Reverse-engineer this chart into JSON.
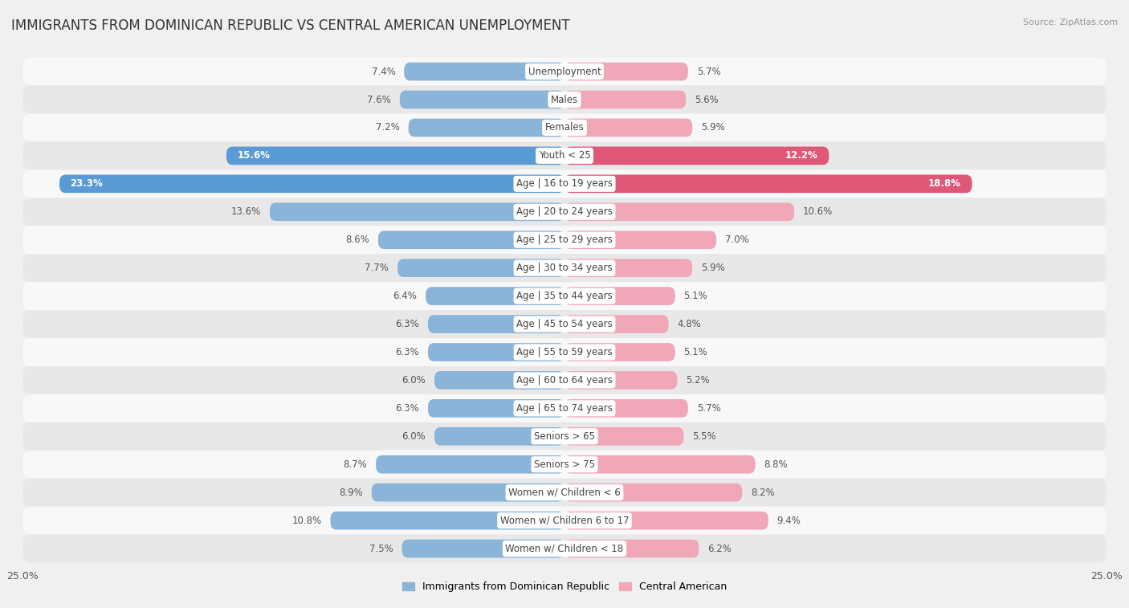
{
  "title": "IMMIGRANTS FROM DOMINICAN REPUBLIC VS CENTRAL AMERICAN UNEMPLOYMENT",
  "source": "Source: ZipAtlas.com",
  "categories": [
    "Unemployment",
    "Males",
    "Females",
    "Youth < 25",
    "Age | 16 to 19 years",
    "Age | 20 to 24 years",
    "Age | 25 to 29 years",
    "Age | 30 to 34 years",
    "Age | 35 to 44 years",
    "Age | 45 to 54 years",
    "Age | 55 to 59 years",
    "Age | 60 to 64 years",
    "Age | 65 to 74 years",
    "Seniors > 65",
    "Seniors > 75",
    "Women w/ Children < 6",
    "Women w/ Children 6 to 17",
    "Women w/ Children < 18"
  ],
  "left_values": [
    7.4,
    7.6,
    7.2,
    15.6,
    23.3,
    13.6,
    8.6,
    7.7,
    6.4,
    6.3,
    6.3,
    6.0,
    6.3,
    6.0,
    8.7,
    8.9,
    10.8,
    7.5
  ],
  "right_values": [
    5.7,
    5.6,
    5.9,
    12.2,
    18.8,
    10.6,
    7.0,
    5.9,
    5.1,
    4.8,
    5.1,
    5.2,
    5.7,
    5.5,
    8.8,
    8.2,
    9.4,
    6.2
  ],
  "left_color_normal": "#8ab4d8",
  "left_color_highlight": "#5b9bd5",
  "right_color_normal": "#f0a8b8",
  "right_color_highlight": "#e05878",
  "highlight_rows": [
    3,
    4
  ],
  "max_value": 25.0,
  "fig_bg": "#f0f0f0",
  "row_bg_even": "#f8f8f8",
  "row_bg_odd": "#e8e8e8",
  "left_label": "Immigrants from Dominican Republic",
  "right_label": "Central American",
  "title_fontsize": 12,
  "cat_fontsize": 8.5,
  "value_fontsize": 8.5,
  "axis_fontsize": 9
}
